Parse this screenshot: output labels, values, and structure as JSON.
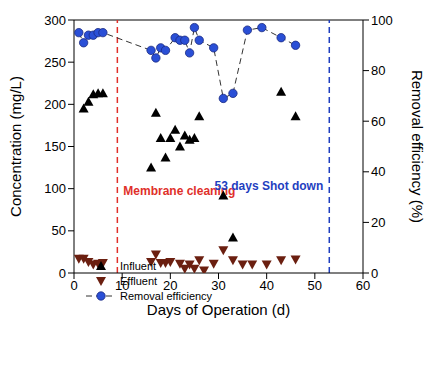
{
  "chart_data": {
    "type": "scatter",
    "xlabel": "Days of Operation (d)",
    "ylabel": "Concentration (mg/L)",
    "y2label": "Removal efficiency (%)",
    "xlim": [
      0,
      60
    ],
    "xticks": [
      0,
      10,
      20,
      30,
      40,
      50,
      60
    ],
    "ylim": [
      0,
      300
    ],
    "yticks": [
      0,
      50,
      100,
      150,
      200,
      250,
      300
    ],
    "y2lim": [
      0,
      100
    ],
    "y2ticks": [
      0,
      20,
      40,
      60,
      80,
      100
    ],
    "grid": false,
    "legend": "lower left",
    "series": [
      {
        "name": "Influent",
        "color": "#000000",
        "marker": "triangle-up",
        "x": [
          2,
          3,
          4,
          5,
          6,
          16,
          17,
          18,
          19,
          20,
          21,
          22,
          23,
          24,
          25,
          26,
          31,
          33,
          43,
          46
        ],
        "values": [
          195,
          203,
          212,
          213,
          213,
          125,
          190,
          160,
          137,
          160,
          170,
          150,
          163,
          158,
          160,
          186,
          92,
          42,
          215,
          186
        ]
      },
      {
        "name": "Effluent",
        "color": "#6b1f10",
        "marker": "triangle-down",
        "x": [
          1,
          2,
          3,
          4,
          5,
          6,
          16,
          17,
          18,
          19,
          20,
          22,
          23,
          24,
          25,
          26,
          27,
          29,
          31,
          33,
          35,
          37,
          40,
          43,
          46
        ],
        "values": [
          17,
          17,
          13,
          10,
          11,
          12,
          13,
          22,
          12,
          12,
          13,
          11,
          5,
          10,
          5,
          15,
          3,
          11,
          27,
          15,
          10,
          10,
          10,
          15,
          16
        ]
      },
      {
        "name": "Removal efficiency",
        "color": "#2a4fd6",
        "marker": "circle",
        "line_style": "dashed",
        "axis": "y2",
        "x": [
          1,
          2,
          3,
          4,
          5,
          6,
          16,
          17,
          18,
          19,
          21,
          22,
          23,
          24,
          25,
          26,
          29,
          31,
          33,
          36,
          39,
          43,
          46
        ],
        "values": [
          95,
          91,
          94,
          94,
          95,
          95,
          88,
          85,
          89,
          88,
          93,
          92,
          92,
          87,
          97,
          92,
          89,
          69,
          71,
          96,
          97,
          93,
          90
        ]
      }
    ],
    "vlines": [
      {
        "x": 9,
        "color": "#e0302a",
        "line_style": "dashed",
        "label": "Membrane cleaning"
      },
      {
        "x": 53,
        "color": "#1f3fbf",
        "line_style": "dashed",
        "label": "53 days Shot down"
      }
    ]
  }
}
